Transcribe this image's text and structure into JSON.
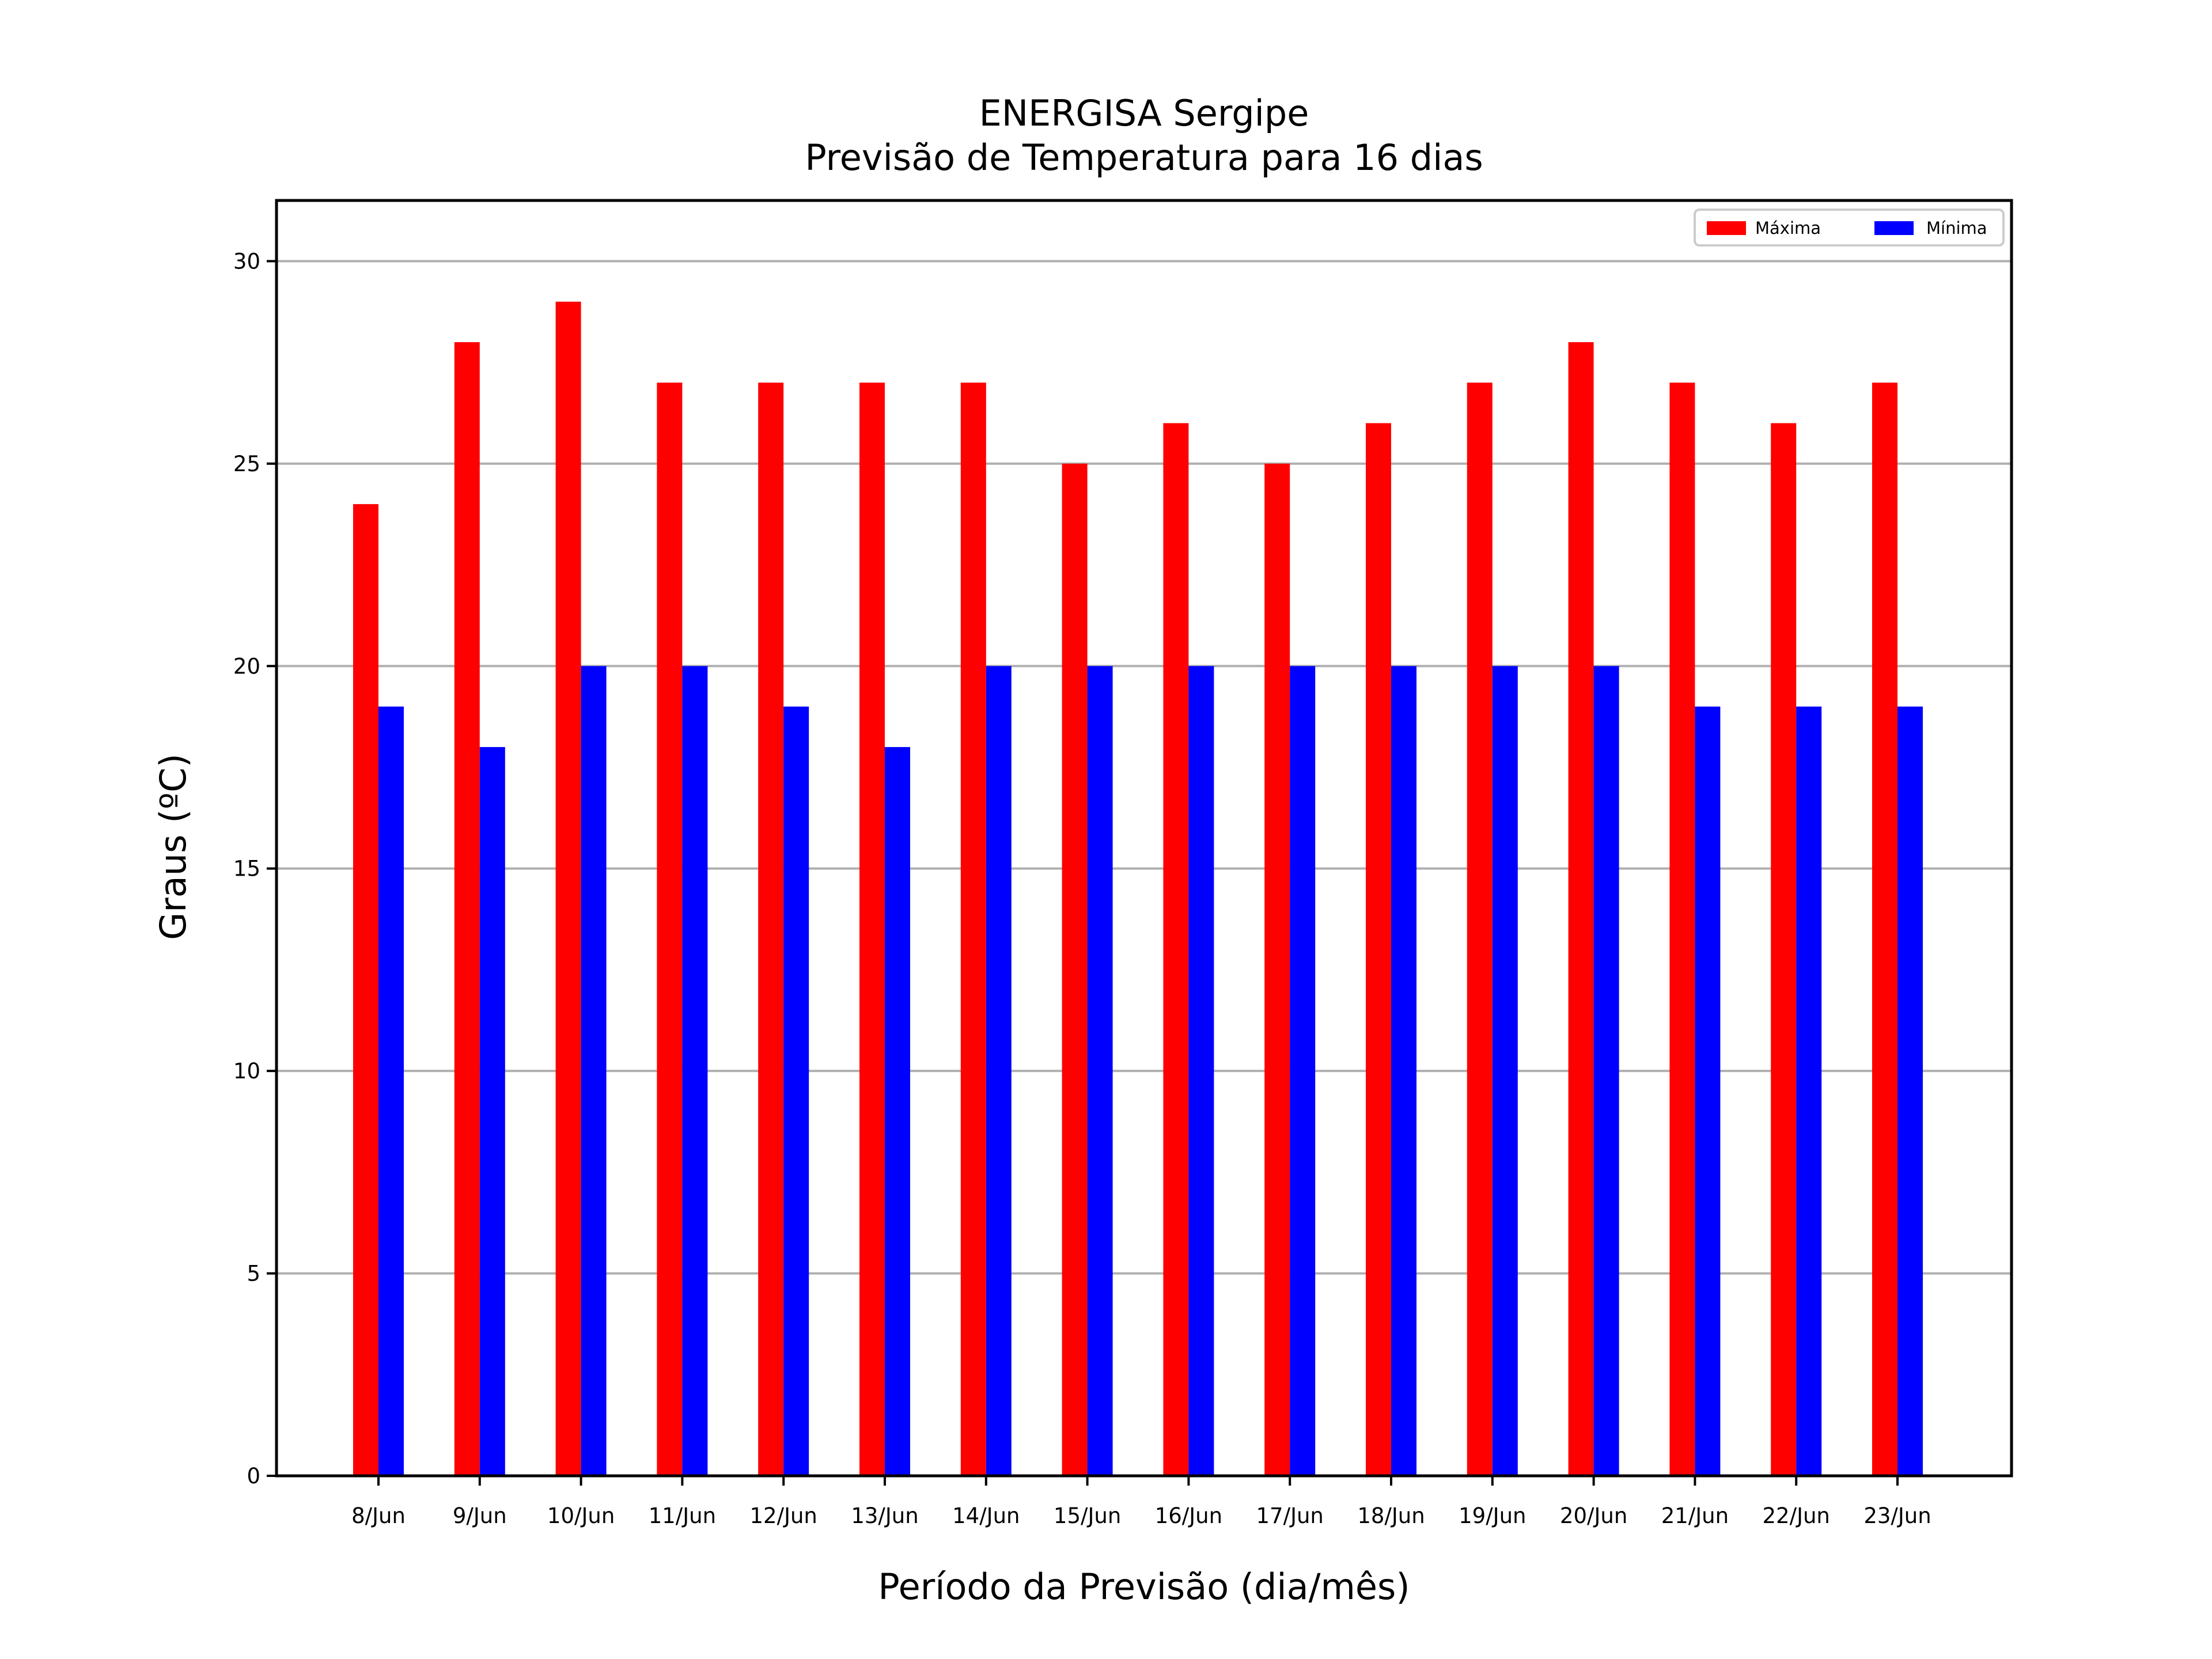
{
  "chart_data": {
    "type": "bar",
    "title": "ENERGISA Sergipe",
    "subtitle": "Previsão de Temperatura para 16 dias",
    "xlabel": "Período da Previsão (dia/mês)",
    "ylabel": "Graus (ºC)",
    "ylim": [
      0,
      30
    ],
    "yticks": [
      0,
      5,
      10,
      15,
      20,
      25,
      30
    ],
    "grid": "horizontal",
    "legend_position": "top-right",
    "categories": [
      "8/Jun",
      "9/Jun",
      "10/Jun",
      "11/Jun",
      "12/Jun",
      "13/Jun",
      "14/Jun",
      "15/Jun",
      "16/Jun",
      "17/Jun",
      "18/Jun",
      "19/Jun",
      "20/Jun",
      "21/Jun",
      "22/Jun",
      "23/Jun"
    ],
    "series": [
      {
        "name": "Máxima",
        "color": "#ff0000",
        "values": [
          24,
          28,
          29,
          27,
          27,
          27,
          27,
          25,
          26,
          25,
          26,
          27,
          28,
          27,
          26,
          27
        ]
      },
      {
        "name": "Mínima",
        "color": "#0000ff",
        "values": [
          19,
          18,
          20,
          20,
          19,
          18,
          20,
          20,
          20,
          20,
          20,
          20,
          20,
          19,
          19,
          19
        ]
      }
    ]
  }
}
